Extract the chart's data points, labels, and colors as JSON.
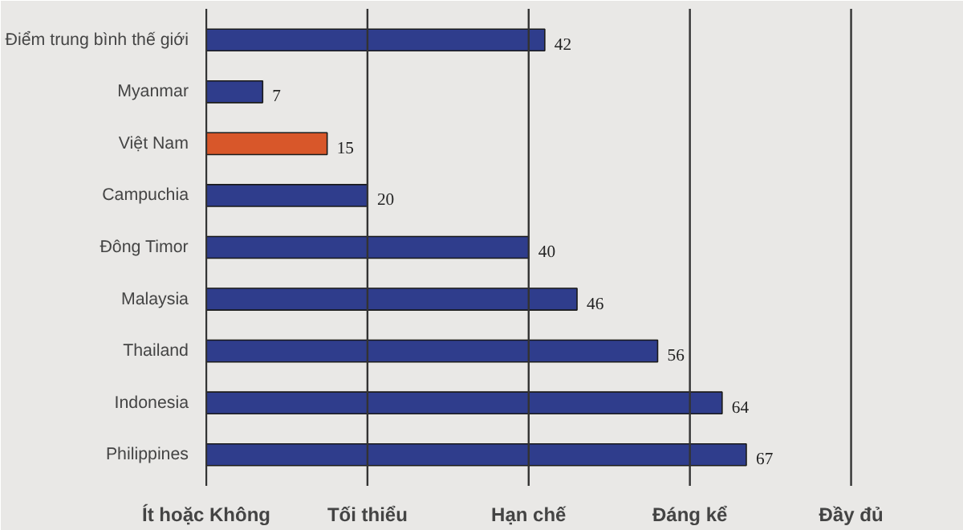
{
  "chart_data": {
    "type": "bar",
    "orientation": "horizontal",
    "categories": [
      "Điểm trung bình thế giới",
      "Myanmar",
      "Việt Nam",
      "Campuchia",
      "Đông Timor",
      "Malaysia",
      "Thailand",
      "Indonesia",
      "Philippines"
    ],
    "values": [
      42,
      7,
      15,
      20,
      40,
      46,
      56,
      64,
      67
    ],
    "colors": [
      "#2f3d8c",
      "#2f3d8c",
      "#d8572a",
      "#2f3d8c",
      "#2f3d8c",
      "#2f3d8c",
      "#2f3d8c",
      "#2f3d8c",
      "#2f3d8c"
    ],
    "xlim": [
      0,
      90
    ],
    "ref_lines": [
      {
        "axis": "x",
        "value": 0,
        "label": "Ít hoặc Không",
        "color": "#333333"
      },
      {
        "axis": "x",
        "value": 20,
        "label": "Tối thiểu",
        "color": "#333333"
      },
      {
        "axis": "x",
        "value": 40,
        "label": "Hạn chế",
        "color": "#333333"
      },
      {
        "axis": "x",
        "value": 60,
        "label": "Đáng kể",
        "color": "#333333"
      },
      {
        "axis": "x",
        "value": 80,
        "label": "Đầy đủ",
        "color": "#333333"
      }
    ],
    "tick_labels": "y",
    "data_labels": true
  }
}
